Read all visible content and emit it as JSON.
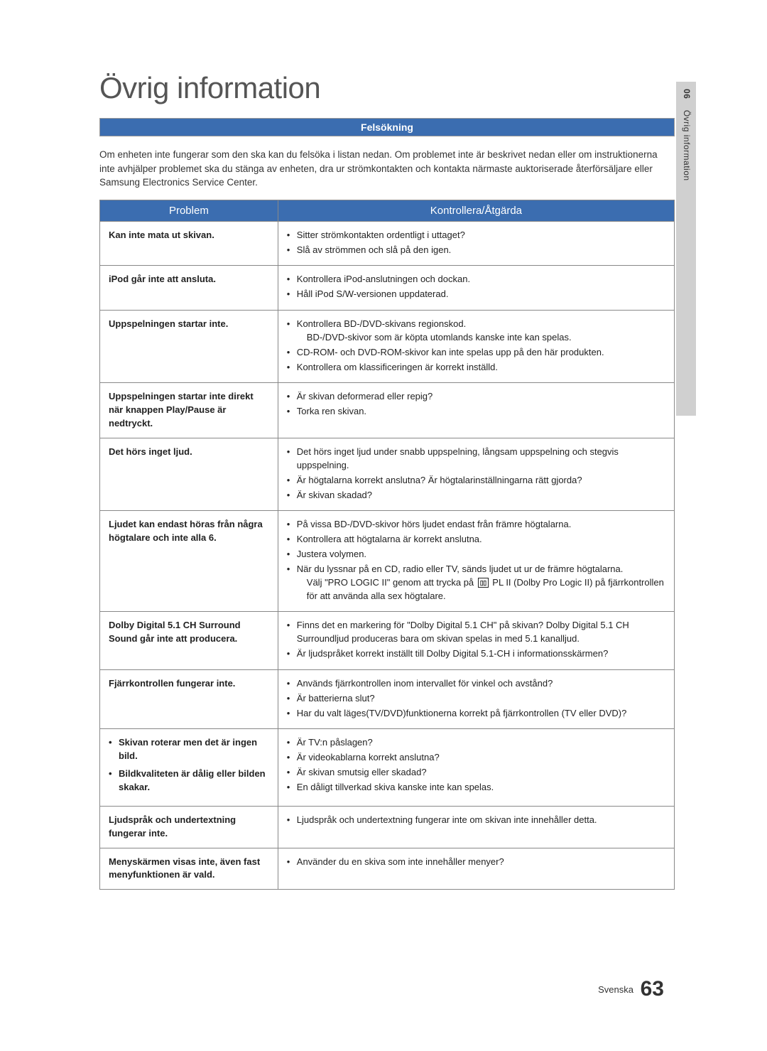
{
  "page": {
    "title": "Övrig information",
    "section_header": "Felsökning",
    "intro": "Om enheten inte fungerar som den ska kan du felsöka i listan nedan. Om problemet inte är beskrivet nedan eller om instruktionerna inte avhjälper problemet ska du stänga av enheten, dra ur strömkontakten och kontakta närmaste auktoriserade återförsäljare eller Samsung Electronics Service Center.",
    "side_tab_num": "06",
    "side_tab_label": "Övrig information",
    "footer_lang": "Svenska",
    "page_number": "63"
  },
  "table": {
    "header_problem": "Problem",
    "header_action": "Kontrollera/Åtgärda",
    "rows": [
      {
        "problem": "Kan inte mata ut skivan.",
        "actions": [
          "Sitter strömkontakten ordentligt i uttaget?",
          "Slå av strömmen och slå på den igen."
        ]
      },
      {
        "problem": "iPod går inte att ansluta.",
        "actions": [
          "Kontrollera iPod-anslutningen och dockan.",
          "Håll iPod S/W-versionen uppdaterad."
        ]
      },
      {
        "problem": "Uppspelningen startar inte.",
        "actions": [
          "Kontrollera BD-/DVD-skivans regionskod.<br><span class=\"subline\">BD-/DVD-skivor som är köpta utomlands kanske inte kan spelas.</span>",
          "CD-ROM- och DVD-ROM-skivor kan inte spelas upp på den här produkten.",
          "Kontrollera om klassificeringen är korrekt inställd."
        ]
      },
      {
        "problem": "Uppspelningen startar inte direkt när knappen Play/Pause är nedtryckt.",
        "actions": [
          "Är skivan deformerad eller repig?",
          "Torka ren skivan."
        ]
      },
      {
        "problem": "Det hörs inget ljud.",
        "actions": [
          "Det hörs inget ljud under snabb uppspelning, långsam uppspelning och stegvis uppspelning.",
          "Är högtalarna korrekt anslutna? Är högtalarinställningarna rätt gjorda?",
          "Är skivan skadad?"
        ]
      },
      {
        "problem": "Ljudet kan endast höras från några högtalare och inte alla 6.",
        "actions": [
          "På vissa BD-/DVD-skivor hörs ljudet endast från främre högtalarna.",
          "Kontrollera att högtalarna är korrekt anslutna.",
          "Justera volymen.",
          "När du lyssnar på en CD, radio eller TV, sänds ljudet ut ur de främre högtalarna.<br><span class=\"subline\">Välj \"PRO LOGIC II\" genom att trycka på <span class=\"dpl-icon\">▯▯</span> PL II (Dolby Pro Logic II) på fjärrkontrollen för att använda alla sex högtalare.</span>"
        ]
      },
      {
        "problem": "Dolby Digital 5.1 CH Surround Sound går inte att producera.",
        "actions": [
          "Finns det en markering för \"Dolby Digital 5.1 CH\" på skivan? Dolby Digital 5.1 CH Surroundljud produceras bara om skivan spelas in med 5.1 kanalljud.",
          "Är ljudspråket korrekt inställt till Dolby Digital 5.1-CH i informationsskärmen?"
        ]
      },
      {
        "problem": "Fjärrkontrollen fungerar inte.",
        "actions": [
          "Används fjärrkontrollen inom intervallet för vinkel och avstånd?",
          "Är batterierna slut?",
          "Har du valt läges(TV/DVD)funktionerna korrekt på fjärrkontrollen (TV eller DVD)?"
        ]
      },
      {
        "problem_list": [
          "Skivan roterar men det är ingen bild.",
          "Bildkvaliteten är dålig eller bilden skakar."
        ],
        "actions": [
          "Är TV:n påslagen?",
          "Är videokablarna korrekt anslutna?",
          "Är skivan smutsig eller skadad?",
          "En dåligt tillverkad skiva kanske inte kan spelas."
        ]
      },
      {
        "problem": "Ljudspråk och undertextning fungerar inte.",
        "actions": [
          "Ljudspråk och undertextning fungerar inte om skivan inte innehåller detta."
        ]
      },
      {
        "problem": "Menyskärmen visas inte, även fast menyfunktionen är vald.",
        "actions": [
          "Använder du en skiva som inte innehåller menyer?"
        ]
      }
    ]
  },
  "colors": {
    "header_bg": "#3b6db0",
    "header_text": "#ffffff",
    "border": "#888888",
    "sidebar_bg": "#d0d0d0",
    "body_text": "#333333"
  }
}
